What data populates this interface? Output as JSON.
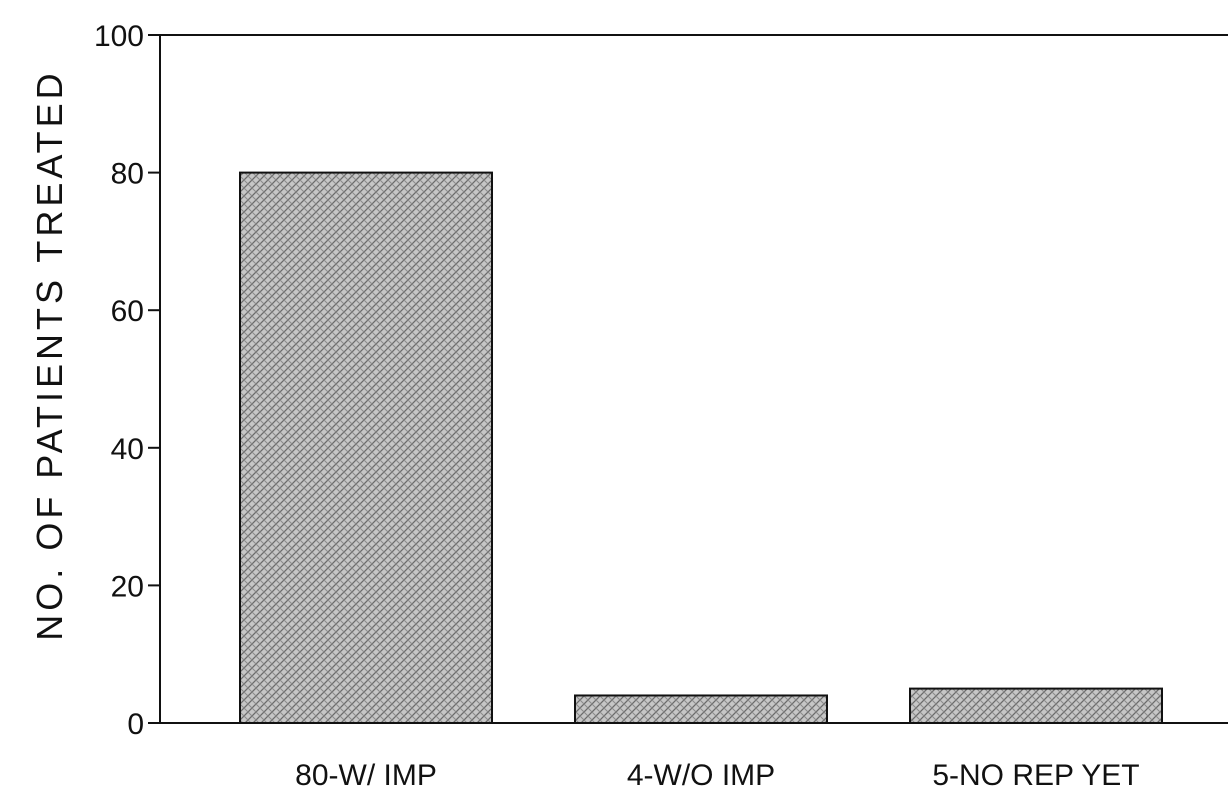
{
  "chart_data": {
    "type": "bar",
    "title": "",
    "xlabel": "",
    "ylabel": "NO. OF PATIENTS TREATED",
    "categories": [
      "80-W/ IMP",
      "4-W/O IMP",
      "5-NO REP YET"
    ],
    "values": [
      80,
      4,
      5
    ],
    "ylim": [
      0,
      100
    ],
    "yticks": [
      "0",
      "20",
      "40",
      "60",
      "80",
      "100"
    ],
    "grid": false,
    "legend": "none",
    "bar_color": "#b8b8b8",
    "bar_pattern": "crosshatch"
  }
}
